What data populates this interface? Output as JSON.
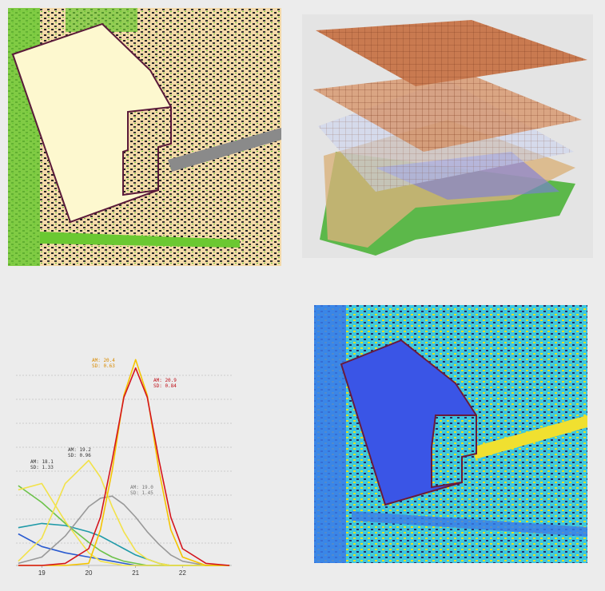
{
  "chart_data": {
    "type": "line",
    "x": [
      18.5,
      19,
      19.5,
      20,
      20.25,
      20.5,
      20.75,
      21,
      21.25,
      21.5,
      21.75,
      22,
      22.5,
      23
    ],
    "xlim": [
      18.45,
      23.05
    ],
    "ylim": [
      0,
      1
    ],
    "xticks": [
      19,
      20,
      21,
      22
    ],
    "series": [
      {
        "color": "#1f9aa8",
        "values": [
          0.18,
          0.2,
          0.19,
          0.16,
          0.14,
          0.11,
          0.08,
          0.05,
          0.03,
          0.01,
          0,
          0,
          0,
          0
        ]
      },
      {
        "color": "#2a5bd0",
        "values": [
          0.15,
          0.09,
          0.06,
          0.04,
          0.03,
          0.02,
          0.01,
          0,
          0,
          0,
          0,
          0,
          0,
          0
        ]
      },
      {
        "color": "#6cc24a",
        "values": [
          0.38,
          0.3,
          0.2,
          0.11,
          0.07,
          0.04,
          0.02,
          0.01,
          0,
          0,
          0,
          0,
          0,
          0
        ]
      },
      {
        "color": "#f2e24a",
        "values": [
          0.36,
          0.39,
          0.21,
          0.06,
          0.02,
          0.01,
          0,
          0,
          0,
          0,
          0,
          0,
          0,
          0
        ]
      },
      {
        "color": "#999999",
        "values": [
          0.01,
          0.04,
          0.14,
          0.28,
          0.32,
          0.33,
          0.29,
          0.23,
          0.16,
          0.1,
          0.05,
          0.02,
          0,
          0
        ]
      },
      {
        "color": "#f2e24a",
        "values": [
          0.02,
          0.13,
          0.39,
          0.5,
          0.42,
          0.28,
          0.16,
          0.07,
          0.03,
          0.01,
          0,
          0,
          0,
          0
        ]
      },
      {
        "color": "#f5c400",
        "values": [
          0,
          0,
          0,
          0.01,
          0.17,
          0.45,
          0.81,
          0.98,
          0.81,
          0.45,
          0.17,
          0.04,
          0,
          0
        ]
      },
      {
        "color": "#d4141c",
        "values": [
          0,
          0,
          0.01,
          0.08,
          0.23,
          0.5,
          0.8,
          0.94,
          0.8,
          0.5,
          0.23,
          0.08,
          0.01,
          0
        ]
      }
    ],
    "annotations": [
      {
        "lines": [
          "AM: 18.1",
          "SD: 1.33"
        ],
        "color": "#333333"
      },
      {
        "lines": [
          "AM: 19.2",
          "SD: 0.96"
        ],
        "color": "#333333"
      },
      {
        "lines": [
          "AM: 20.4",
          "SD: 0.63"
        ],
        "color": "#d88a00"
      },
      {
        "lines": [
          "AM: 20.9",
          "SD: 0.84"
        ],
        "color": "#c01018"
      },
      {
        "lines": [
          "AM: 19.0",
          "SD: 1.45"
        ],
        "color": "#777777"
      }
    ]
  }
}
